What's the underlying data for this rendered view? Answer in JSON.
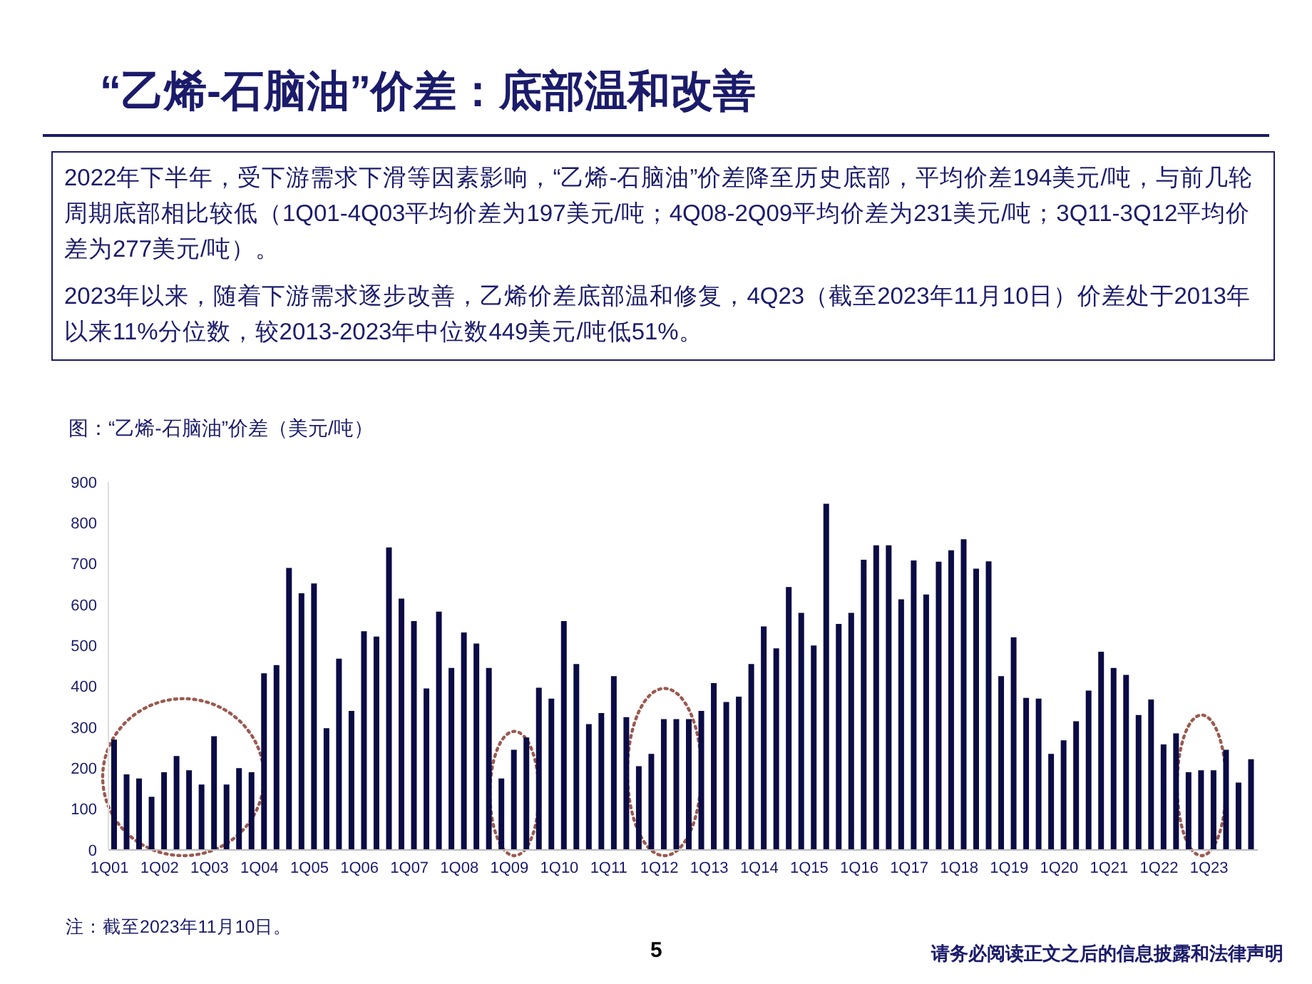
{
  "chart_data": {
    "type": "bar",
    "title": "“乙烯-石脑油”价差：底部温和改善",
    "annotations": [
      "2022年下半年，受下游需求下滑等因素影响，“乙烯-石脑油”价差降至历史底部，平均价差194美元/吨，与前几轮周期底部相比较低（1Q01-4Q03平均价差为197美元/吨；4Q08-2Q09平均价差为231美元/吨；3Q11-3Q12平均价差为277美元/吨）。",
      "2023年以来，随着下游需求逐步改善，乙烯价差底部温和修复，4Q23（截至2023年11月10日）价差处于2013年以来11%分位数，较2013-2023年中位数449美元/吨低51%。",
      "图：“乙烯-石脑油”价差（美元/吨）",
      "注：截至2023年11月10日。",
      "5",
      "请务必阅读正文之后的信息披露和法律声明"
    ],
    "categories": [
      "1Q01",
      null,
      null,
      null,
      "1Q02",
      null,
      null,
      null,
      "1Q03",
      null,
      null,
      null,
      "1Q04",
      null,
      null,
      null,
      "1Q05",
      null,
      null,
      null,
      "1Q06",
      null,
      null,
      null,
      "1Q07",
      null,
      null,
      null,
      "1Q08",
      null,
      null,
      null,
      "1Q09",
      null,
      null,
      null,
      "1Q10",
      null,
      null,
      null,
      "1Q11",
      null,
      null,
      null,
      "1Q12",
      null,
      null,
      null,
      "1Q13",
      null,
      null,
      null,
      "1Q14",
      null,
      null,
      null,
      "1Q15",
      null,
      null,
      null,
      "1Q16",
      null,
      null,
      null,
      "1Q17",
      null,
      null,
      null,
      "1Q18",
      null,
      null,
      null,
      "1Q19",
      null,
      null,
      null,
      "1Q20",
      null,
      null,
      null,
      "1Q21",
      null,
      null,
      null,
      "1Q22",
      null,
      null,
      null,
      "1Q23",
      null,
      null,
      null
    ],
    "values": [
      270,
      185,
      175,
      130,
      190,
      230,
      195,
      160,
      278,
      160,
      200,
      190,
      432,
      452,
      690,
      628,
      652,
      298,
      468,
      340,
      535,
      522,
      740,
      615,
      560,
      395,
      583,
      445,
      532,
      505,
      445,
      175,
      245,
      275,
      397,
      370,
      560,
      455,
      308,
      335,
      425,
      325,
      205,
      235,
      320,
      320,
      320,
      340,
      408,
      362,
      375,
      455,
      547,
      493,
      643,
      580,
      500,
      847,
      553,
      580,
      710,
      745,
      745,
      613,
      708,
      625,
      705,
      733,
      760,
      688,
      706,
      425,
      520,
      372,
      370,
      235,
      268,
      315,
      390,
      485,
      445,
      428,
      330,
      368,
      258,
      285,
      190,
      195,
      195,
      245,
      165,
      222
    ],
    "color": "#0b0b45",
    "ylim": [
      0,
      900
    ],
    "yticks": [
      0,
      100,
      200,
      300,
      400,
      500,
      600,
      700,
      800,
      900
    ]
  }
}
